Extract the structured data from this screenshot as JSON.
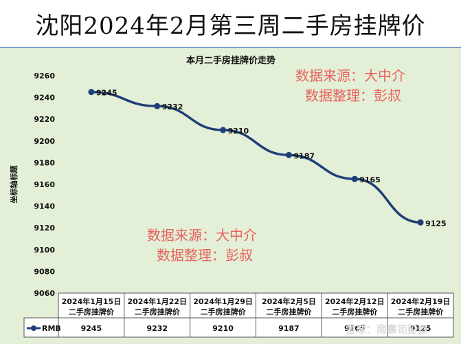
{
  "page_title": "沈阳2024年2月第三周二手房挂牌价",
  "watermark_lines": [
    "数据来源：大中介",
    "数据整理：彭叔"
  ],
  "footer_watermark": "雪球：南事司彭叔",
  "chart_data": {
    "type": "line",
    "title": "本月二手房挂牌价走势",
    "ylabel": "坐标轴标题",
    "xlabel": "",
    "ylim": [
      9060,
      9260
    ],
    "ytick_step": 20,
    "grid": false,
    "categories": [
      [
        "2024年1月15日",
        "二手房挂牌价"
      ],
      [
        "2024年1月22日",
        "二手房挂牌价"
      ],
      [
        "2024年1月29日",
        "二手房挂牌价"
      ],
      [
        "2024年2月5日",
        "二手房挂牌价"
      ],
      [
        "2024年2月12日",
        "二手房挂牌价"
      ],
      [
        "2024年2月19日",
        "二手房挂牌价"
      ]
    ],
    "series": [
      {
        "name": "RMB",
        "values": [
          9245,
          9232,
          9210,
          9187,
          9165,
          9125
        ]
      }
    ],
    "data_table": true,
    "colors": {
      "line": "#1f3f78",
      "background": "#e3efd6",
      "watermark": "#e8615f"
    }
  }
}
